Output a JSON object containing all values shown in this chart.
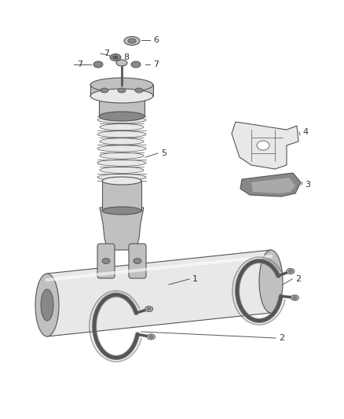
{
  "background_color": "#ffffff",
  "figsize": [
    4.38,
    5.33
  ],
  "dpi": 100,
  "line_color": "#555555",
  "text_color": "#333333",
  "part_fill_light": "#e8e8e8",
  "part_fill_mid": "#c0c0c0",
  "part_fill_dark": "#888888",
  "part_fill_vdark": "#555555",
  "label_fontsize": 8.0
}
